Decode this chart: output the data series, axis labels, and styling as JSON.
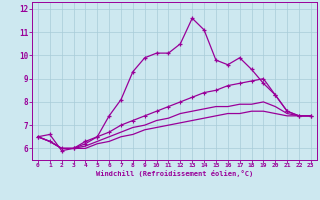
{
  "xlabel": "Windchill (Refroidissement éolien,°C)",
  "bg_color": "#cde8f0",
  "line_color": "#990099",
  "grid_color": "#a8ccd8",
  "ylim": [
    5.5,
    12.3
  ],
  "xlim": [
    -0.5,
    23.5
  ],
  "yticks": [
    6,
    7,
    8,
    9,
    10,
    11,
    12
  ],
  "xticks": [
    0,
    1,
    2,
    3,
    4,
    5,
    6,
    7,
    8,
    9,
    10,
    11,
    12,
    13,
    14,
    15,
    16,
    17,
    18,
    19,
    20,
    21,
    22,
    23
  ],
  "line1_x": [
    0,
    1,
    2,
    3,
    4,
    5,
    6,
    7,
    8,
    9,
    10,
    11,
    12,
    13,
    14,
    15,
    16,
    17,
    18,
    19,
    20,
    21,
    22,
    23
  ],
  "line1_y": [
    6.5,
    6.6,
    5.9,
    6.0,
    6.3,
    6.5,
    7.4,
    8.1,
    9.3,
    9.9,
    10.1,
    10.1,
    10.5,
    11.6,
    11.1,
    9.8,
    9.6,
    9.9,
    9.4,
    8.8,
    8.3,
    7.6,
    7.4,
    7.4
  ],
  "line2_x": [
    0,
    1,
    2,
    3,
    4,
    5,
    6,
    7,
    8,
    9,
    10,
    11,
    12,
    13,
    14,
    15,
    16,
    17,
    18,
    19,
    20,
    21,
    22,
    23
  ],
  "line2_y": [
    6.5,
    6.3,
    6.0,
    6.0,
    6.2,
    6.5,
    6.7,
    7.0,
    7.2,
    7.4,
    7.6,
    7.8,
    8.0,
    8.2,
    8.4,
    8.5,
    8.7,
    8.8,
    8.9,
    9.0,
    8.3,
    7.6,
    7.4,
    7.4
  ],
  "line3_x": [
    0,
    1,
    2,
    3,
    4,
    5,
    6,
    7,
    8,
    9,
    10,
    11,
    12,
    13,
    14,
    15,
    16,
    17,
    18,
    19,
    20,
    21,
    22,
    23
  ],
  "line3_y": [
    6.5,
    6.3,
    6.0,
    6.0,
    6.1,
    6.3,
    6.5,
    6.7,
    6.9,
    7.0,
    7.2,
    7.3,
    7.5,
    7.6,
    7.7,
    7.8,
    7.8,
    7.9,
    7.9,
    8.0,
    7.8,
    7.5,
    7.4,
    7.4
  ],
  "line4_x": [
    0,
    1,
    2,
    3,
    4,
    5,
    6,
    7,
    8,
    9,
    10,
    11,
    12,
    13,
    14,
    15,
    16,
    17,
    18,
    19,
    20,
    21,
    22,
    23
  ],
  "line4_y": [
    6.5,
    6.3,
    6.0,
    6.0,
    6.0,
    6.2,
    6.3,
    6.5,
    6.6,
    6.8,
    6.9,
    7.0,
    7.1,
    7.2,
    7.3,
    7.4,
    7.5,
    7.5,
    7.6,
    7.6,
    7.5,
    7.4,
    7.4,
    7.4
  ]
}
